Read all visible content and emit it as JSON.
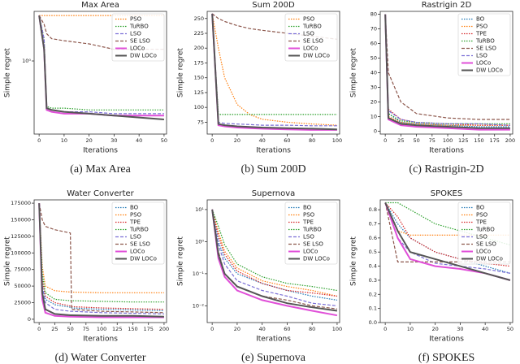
{
  "chart_data": [
    {
      "type": "line",
      "title": "Max Area",
      "x_label": "Iterations",
      "y_label": "Simple regret",
      "caption": "(a) Max Area",
      "log": true,
      "legend": "upper right",
      "x": [
        0,
        2,
        3,
        5,
        10,
        20,
        30,
        40,
        50
      ],
      "xlim": [
        -2,
        51
      ],
      "xticks": [
        0,
        10,
        20,
        30,
        40,
        50
      ],
      "ylim": [
        0.55,
        1.5
      ],
      "yticks": [
        {
          "value": 1,
          "label": "10⁰"
        }
      ],
      "series": [
        {
          "name": "PSO",
          "color": "#ff7f0e",
          "dash": "dotted",
          "values": [
            1.45,
            1.45,
            1.45,
            1.45,
            1.45,
            1.45,
            1.45,
            1.45,
            1.45
          ]
        },
        {
          "name": "TuRBO",
          "color": "#2ca02c",
          "dash": "dotted",
          "values": [
            1.45,
            1.2,
            0.69,
            0.68,
            0.68,
            0.67,
            0.67,
            0.67,
            0.67
          ]
        },
        {
          "name": "LSO",
          "color": "#7b6fd6",
          "dash": "dashed",
          "values": [
            1.45,
            1.2,
            0.68,
            0.67,
            0.66,
            0.66,
            0.65,
            0.65,
            0.65
          ]
        },
        {
          "name": "SE LSO",
          "color": "#8c564b",
          "dash": "dashed",
          "values": [
            1.45,
            1.35,
            1.25,
            1.2,
            1.18,
            1.15,
            1.1,
            1.1,
            1.1
          ]
        },
        {
          "name": "LOCo",
          "color": "#e04fd8",
          "dash": "solid",
          "values": [
            1.45,
            1.1,
            0.67,
            0.66,
            0.65,
            0.65,
            0.64,
            0.64,
            0.64
          ]
        },
        {
          "name": "DW LOCo",
          "color": "#555555",
          "dash": "solid",
          "values": [
            1.45,
            1.1,
            0.68,
            0.67,
            0.66,
            0.65,
            0.64,
            0.63,
            0.62
          ]
        }
      ]
    },
    {
      "type": "line",
      "title": "Sum 200D",
      "x_label": "Iterations",
      "y_label": "Simple regret",
      "caption": "(b) Sum 200D",
      "log": false,
      "legend": "upper right",
      "x": [
        0,
        5,
        10,
        20,
        30,
        40,
        60,
        80,
        100
      ],
      "xlim": [
        -4,
        102
      ],
      "xticks": [
        0,
        20,
        40,
        60,
        80,
        100
      ],
      "ylim": [
        55,
        262
      ],
      "yticks": [
        75,
        100,
        125,
        150,
        175,
        200,
        225,
        250
      ],
      "series": [
        {
          "name": "PSO",
          "color": "#ff7f0e",
          "dash": "dotted",
          "values": [
            258,
            200,
            150,
            105,
            88,
            80,
            75,
            72,
            70
          ]
        },
        {
          "name": "TuRBO",
          "color": "#2ca02c",
          "dash": "dotted",
          "values": [
            258,
            88,
            88,
            88,
            88,
            88,
            88,
            88,
            88
          ]
        },
        {
          "name": "LSO",
          "color": "#7b6fd6",
          "dash": "dashed",
          "values": [
            258,
            75,
            73,
            72,
            71,
            70,
            70,
            69,
            69
          ]
        },
        {
          "name": "SE LSO",
          "color": "#8c564b",
          "dash": "dashed",
          "values": [
            258,
            250,
            245,
            238,
            233,
            230,
            225,
            220,
            215
          ]
        },
        {
          "name": "LOCo",
          "color": "#e04fd8",
          "dash": "solid",
          "values": [
            258,
            70,
            68,
            66,
            65,
            64,
            63,
            62,
            62
          ]
        },
        {
          "name": "DW LOCo",
          "color": "#555555",
          "dash": "solid",
          "values": [
            258,
            72,
            70,
            68,
            67,
            66,
            65,
            64,
            63
          ]
        }
      ]
    },
    {
      "type": "line",
      "title": "Rastrigin 2D",
      "x_label": "Iterations",
      "y_label": "Simple regret",
      "caption": "(c) Rastrigin-2D",
      "log": false,
      "legend": "upper right",
      "x": [
        0,
        5,
        25,
        50,
        100,
        150,
        200
      ],
      "xlim": [
        -8,
        204
      ],
      "xticks": [
        0,
        25,
        50,
        75,
        100,
        125,
        150,
        175,
        200
      ],
      "ylim": [
        -2,
        82
      ],
      "yticks": [
        0,
        10,
        20,
        30,
        40,
        50,
        60,
        70,
        80
      ],
      "series": [
        {
          "name": "BO",
          "color": "#1f77b4",
          "dash": "dotted",
          "values": [
            80,
            12,
            6,
            5,
            4,
            3,
            3
          ]
        },
        {
          "name": "PSO",
          "color": "#ff7f0e",
          "dash": "dotted",
          "values": [
            80,
            10,
            6,
            5,
            4,
            4,
            4
          ]
        },
        {
          "name": "TPE",
          "color": "#d62728",
          "dash": "dotted",
          "values": [
            80,
            15,
            8,
            6,
            5,
            4,
            4
          ]
        },
        {
          "name": "TuRBO",
          "color": "#2ca02c",
          "dash": "dotted",
          "values": [
            80,
            12,
            7,
            6,
            5,
            5,
            5
          ]
        },
        {
          "name": "SE LSO",
          "color": "#8c564b",
          "dash": "dashed",
          "values": [
            80,
            40,
            20,
            12,
            9,
            8,
            8
          ]
        },
        {
          "name": "LSO",
          "color": "#7b6fd6",
          "dash": "dashed",
          "values": [
            80,
            14,
            8,
            6,
            5,
            5,
            4
          ]
        },
        {
          "name": "LOCo",
          "color": "#e04fd8",
          "dash": "solid",
          "values": [
            80,
            8,
            4,
            3,
            2,
            1,
            1
          ]
        },
        {
          "name": "DW LOCo",
          "color": "#555555",
          "dash": "solid",
          "values": [
            80,
            9,
            5,
            4,
            3,
            2,
            2
          ]
        }
      ]
    },
    {
      "type": "line",
      "title": "Water Converter",
      "x_label": "Iterations",
      "y_label": "Simple regret",
      "caption": "(d) Water Converter",
      "log": false,
      "legend": "upper right",
      "x": [
        0,
        5,
        10,
        25,
        50,
        52,
        100,
        150,
        200
      ],
      "xlim": [
        -8,
        204
      ],
      "xticks": [
        0,
        25,
        50,
        75,
        100,
        125,
        150,
        175,
        200
      ],
      "ylim": [
        -5000,
        180000
      ],
      "yticks": [
        0,
        25000,
        50000,
        75000,
        100000,
        125000,
        150000,
        175000
      ],
      "series": [
        {
          "name": "BO",
          "color": "#1f77b4",
          "dash": "dotted",
          "values": [
            175000,
            60000,
            30000,
            22000,
            18000,
            17000,
            15000,
            14000,
            13000
          ]
        },
        {
          "name": "PSO",
          "color": "#ff7f0e",
          "dash": "dotted",
          "values": [
            175000,
            80000,
            50000,
            43000,
            41000,
            41000,
            40000,
            40000,
            40000
          ]
        },
        {
          "name": "TPE",
          "color": "#d62728",
          "dash": "dotted",
          "values": [
            175000,
            60000,
            35000,
            25000,
            20000,
            19000,
            17000,
            16000,
            15000
          ]
        },
        {
          "name": "TuRBO",
          "color": "#2ca02c",
          "dash": "dotted",
          "values": [
            175000,
            70000,
            40000,
            30000,
            28000,
            28000,
            27000,
            26000,
            26000
          ]
        },
        {
          "name": "LSO",
          "color": "#7b6fd6",
          "dash": "dashed",
          "values": [
            175000,
            50000,
            25000,
            15000,
            12000,
            12000,
            10000,
            9000,
            8000
          ]
        },
        {
          "name": "SE LSO",
          "color": "#8c564b",
          "dash": "dashed",
          "values": [
            175000,
            150000,
            140000,
            135000,
            130000,
            15000,
            12000,
            11000,
            10000
          ]
        },
        {
          "name": "LOCo",
          "color": "#e04fd8",
          "dash": "solid",
          "values": [
            175000,
            30000,
            10000,
            5000,
            4000,
            4000,
            3000,
            3000,
            3000
          ]
        },
        {
          "name": "DW LOCo",
          "color": "#555555",
          "dash": "solid",
          "values": [
            175000,
            40000,
            15000,
            8000,
            6000,
            6000,
            5000,
            5000,
            4000
          ]
        }
      ]
    },
    {
      "type": "line",
      "title": "Supernova",
      "x_label": "Iterations",
      "y_label": "Simple regret",
      "caption": "(e) Supernova",
      "log": true,
      "legend": "upper right",
      "x": [
        0,
        5,
        10,
        20,
        40,
        60,
        80,
        100
      ],
      "xlim": [
        -4,
        102
      ],
      "xticks": [
        0,
        20,
        40,
        60,
        80,
        100
      ],
      "ylim": [
        0.003,
        20
      ],
      "yticks": [
        {
          "value": 10,
          "label": "10¹"
        },
        {
          "value": 1,
          "label": "10⁰"
        },
        {
          "value": 0.1,
          "label": "10⁻¹"
        },
        {
          "value": 0.01,
          "label": "10⁻²"
        }
      ],
      "series": [
        {
          "name": "BO",
          "color": "#1f77b4",
          "dash": "dotted",
          "values": [
            10,
            1,
            0.3,
            0.1,
            0.05,
            0.03,
            0.02,
            0.015
          ]
        },
        {
          "name": "PSO",
          "color": "#ff7f0e",
          "dash": "dotted",
          "values": [
            10,
            2,
            0.5,
            0.15,
            0.06,
            0.04,
            0.03,
            0.02
          ]
        },
        {
          "name": "TPE",
          "color": "#d62728",
          "dash": "dotted",
          "values": [
            10,
            1.5,
            0.4,
            0.12,
            0.05,
            0.03,
            0.025,
            0.02
          ]
        },
        {
          "name": "TuRBO",
          "color": "#2ca02c",
          "dash": "dotted",
          "values": [
            10,
            3,
            0.8,
            0.2,
            0.08,
            0.05,
            0.04,
            0.03
          ]
        },
        {
          "name": "LSO",
          "color": "#7b6fd6",
          "dash": "dashed",
          "values": [
            10,
            0.8,
            0.2,
            0.06,
            0.03,
            0.02,
            0.012,
            0.01
          ]
        },
        {
          "name": "SE LSO",
          "color": "#8c564b",
          "dash": "dashed",
          "values": [
            10,
            0.5,
            0.1,
            0.04,
            0.02,
            0.015,
            0.01,
            0.008
          ]
        },
        {
          "name": "LOCo",
          "color": "#e04fd8",
          "dash": "solid",
          "values": [
            10,
            0.3,
            0.08,
            0.03,
            0.015,
            0.01,
            0.007,
            0.005
          ]
        },
        {
          "name": "DW LOCo",
          "color": "#555555",
          "dash": "solid",
          "values": [
            10,
            0.4,
            0.1,
            0.04,
            0.02,
            0.012,
            0.009,
            0.007
          ]
        }
      ]
    },
    {
      "type": "line",
      "title": "SPOKES",
      "x_label": "Iterations",
      "y_label": "Simple regret",
      "caption": "(f) SPOKES",
      "log": false,
      "legend": "upper right",
      "x": [
        0,
        5,
        10,
        20,
        30,
        40,
        50
      ],
      "xlim": [
        -2,
        51
      ],
      "xticks": [
        0,
        10,
        20,
        30,
        40,
        50
      ],
      "ylim": [
        0,
        0.87
      ],
      "yticks": [
        {
          "value": 0,
          "label": "0.0"
        },
        0.1,
        0.2,
        0.3,
        0.4,
        0.5,
        0.6,
        0.7,
        0.8
      ],
      "series": [
        {
          "name": "BO",
          "color": "#1f77b4",
          "dash": "dotted",
          "values": [
            0.85,
            0.7,
            0.6,
            0.5,
            0.45,
            0.4,
            0.35
          ]
        },
        {
          "name": "PSO",
          "color": "#ff7f0e",
          "dash": "dotted",
          "values": [
            0.85,
            0.65,
            0.62,
            0.62,
            0.62,
            0.62,
            0.62
          ]
        },
        {
          "name": "TPE",
          "color": "#d62728",
          "dash": "dotted",
          "values": [
            0.85,
            0.75,
            0.6,
            0.5,
            0.45,
            0.42,
            0.4
          ]
        },
        {
          "name": "TuRBO",
          "color": "#2ca02c",
          "dash": "dotted",
          "values": [
            0.85,
            0.85,
            0.8,
            0.7,
            0.65,
            0.6,
            0.55
          ]
        },
        {
          "name": "LSO",
          "color": "#7b6fd6",
          "dash": "dashed",
          "values": [
            0.85,
            0.6,
            0.5,
            0.42,
            0.4,
            0.38,
            0.35
          ]
        },
        {
          "name": "SE LSO",
          "color": "#8c564b",
          "dash": "dashed",
          "values": [
            0.85,
            0.43,
            0.43,
            0.43,
            0.43,
            0.43,
            0.43
          ]
        },
        {
          "name": "LOCo",
          "color": "#e04fd8",
          "dash": "solid",
          "values": [
            0.85,
            0.6,
            0.45,
            0.4,
            0.38,
            0.35,
            0.3
          ]
        },
        {
          "name": "DW LOCo",
          "color": "#555555",
          "dash": "solid",
          "values": [
            0.85,
            0.65,
            0.5,
            0.45,
            0.4,
            0.35,
            0.3
          ]
        }
      ]
    }
  ]
}
